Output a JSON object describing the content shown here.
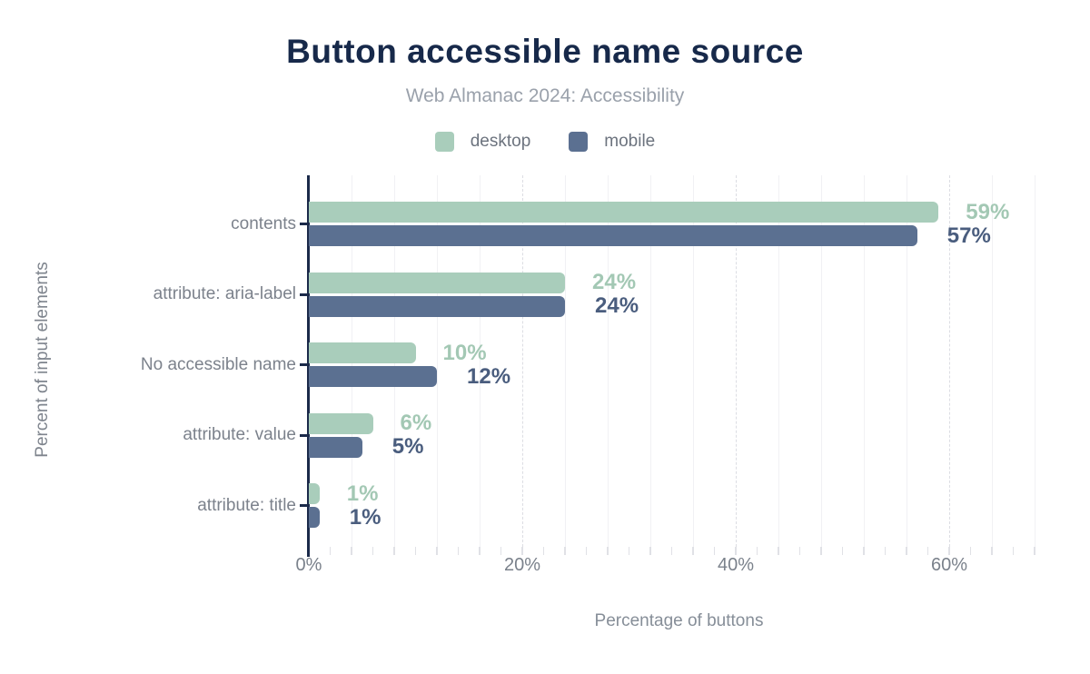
{
  "header": {
    "title": "Button accessible name source",
    "subtitle": "Web Almanac 2024: Accessibility"
  },
  "legend": {
    "items": [
      {
        "label": "desktop",
        "color": "#a9cdbb"
      },
      {
        "label": "mobile",
        "color": "#5b7091"
      }
    ]
  },
  "chart_data": {
    "type": "bar",
    "orientation": "horizontal",
    "title": "Button accessible name source",
    "subtitle": "Web Almanac 2024: Accessibility",
    "categories": [
      "contents",
      "attribute: aria-label",
      "No accessible name",
      "attribute: value",
      "attribute: title"
    ],
    "series": [
      {
        "name": "desktop",
        "color": "#a9cdbb",
        "label_color": "#a3c8b4",
        "values": [
          59,
          24,
          10,
          6,
          1
        ]
      },
      {
        "name": "mobile",
        "color": "#5b7091",
        "label_color": "#4a5d7e",
        "values": [
          57,
          24,
          12,
          5,
          1
        ]
      }
    ],
    "value_suffix": "%",
    "xlabel": "Percentage of buttons",
    "ylabel": "Percent of input elements",
    "x_ticks": [
      {
        "value": 0,
        "label": "0%"
      },
      {
        "value": 20,
        "label": "20%"
      },
      {
        "value": 40,
        "label": "40%"
      },
      {
        "value": 60,
        "label": "60%"
      }
    ],
    "xlim": [
      0,
      69.4
    ],
    "grid": {
      "minor_step_pct": 4,
      "major_step_pct": 20,
      "minor_tick_step_pct": 2,
      "gridlines": "vertical"
    },
    "legend_position": "top",
    "axis_color": "#1b2a4a"
  }
}
